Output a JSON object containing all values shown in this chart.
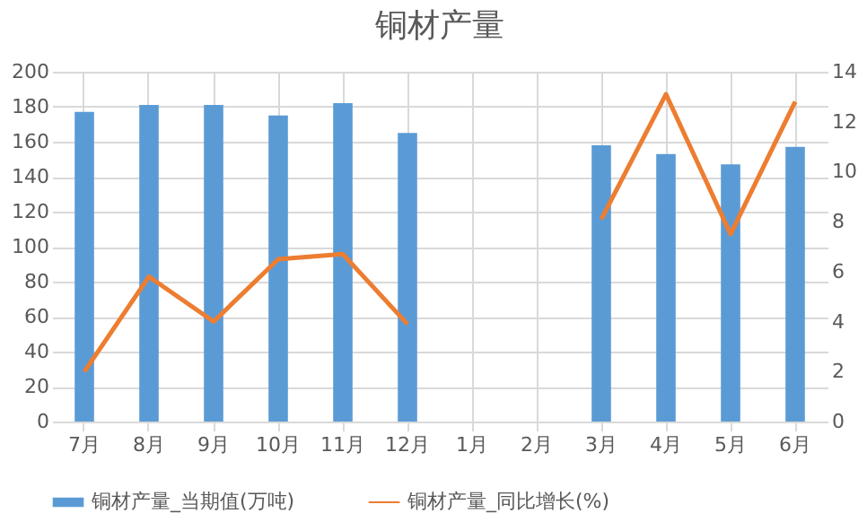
{
  "chart_data": {
    "type": "bar",
    "title": "铜材产量",
    "categories": [
      "7月",
      "8月",
      "9月",
      "10月",
      "11月",
      "12月",
      "1月",
      "2月",
      "3月",
      "4月",
      "5月",
      "6月"
    ],
    "series": [
      {
        "name": "铜材产量_当期值(万吨)",
        "color": "#5b9bd5",
        "values": [
          177,
          181,
          181,
          175,
          182,
          165,
          null,
          null,
          158,
          153,
          147,
          157
        ]
      },
      {
        "name": "铜材产量_同比增长(%)",
        "type": "line",
        "axis": "y2",
        "color": "#ed7d31",
        "values": [
          2.0,
          5.8,
          4.0,
          6.5,
          6.7,
          3.9,
          null,
          null,
          8.1,
          13.1,
          7.5,
          12.8
        ]
      }
    ],
    "ylim": [
      0,
      200
    ],
    "yticks": [
      0,
      20,
      40,
      60,
      80,
      100,
      120,
      140,
      160,
      180,
      200
    ],
    "y2lim": [
      0,
      14
    ],
    "y2ticks": [
      0,
      2,
      4,
      6,
      8,
      10,
      12,
      14
    ],
    "grid": true,
    "legend": "bottom"
  }
}
